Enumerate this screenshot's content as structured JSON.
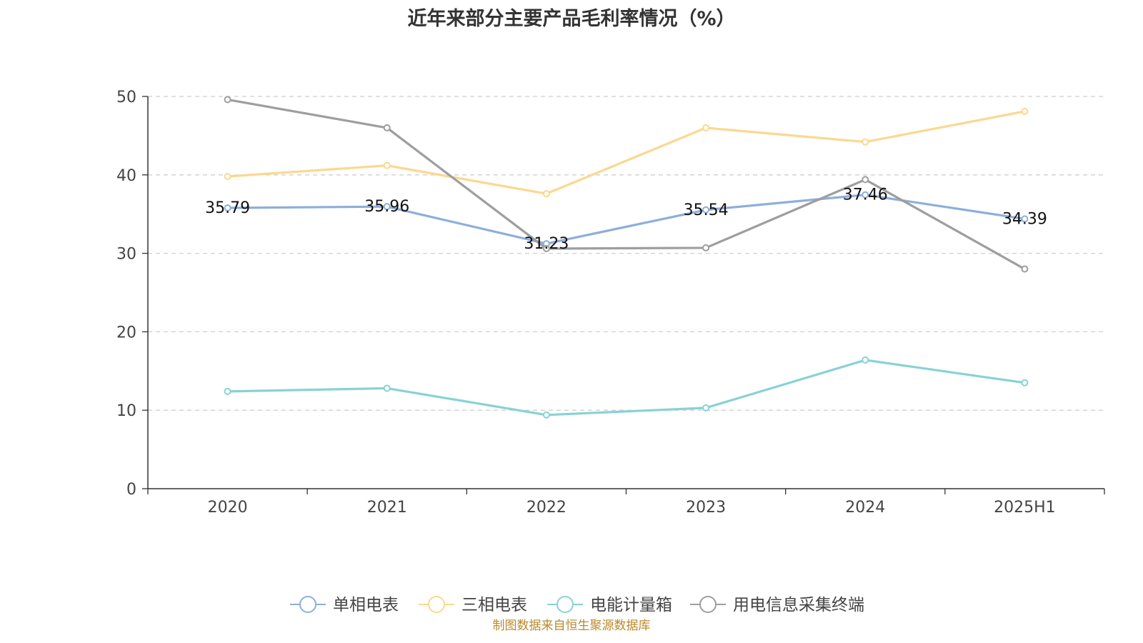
{
  "chart_data": {
    "type": "line",
    "title": "近年来部分主要产品毛利率情况（%）",
    "categories": [
      "2020",
      "2021",
      "2022",
      "2023",
      "2024",
      "2025H1"
    ],
    "ylim": [
      0,
      50
    ],
    "yticks": [
      "0",
      "10",
      "20",
      "30",
      "40",
      "50"
    ],
    "grid": true,
    "legend_position": "bottom",
    "series": [
      {
        "name": "单相电表",
        "color": "#8eaedb",
        "values": [
          35.79,
          35.96,
          31.23,
          35.54,
          37.46,
          34.39
        ],
        "labels": [
          "35.79",
          "35.96",
          "31.23",
          "35.54",
          "37.46",
          "34.39"
        ]
      },
      {
        "name": "三相电表",
        "color": "#fbd88f",
        "values": [
          39.8,
          41.2,
          37.6,
          46.0,
          44.2,
          48.1
        ]
      },
      {
        "name": "电能计量箱",
        "color": "#88d2d5",
        "values": [
          12.4,
          12.8,
          9.4,
          10.3,
          16.4,
          13.5
        ]
      },
      {
        "name": "用电信息采集终端",
        "color": "#9e9e9e",
        "values": [
          49.6,
          46.0,
          30.6,
          30.7,
          39.4,
          28.0
        ]
      }
    ]
  },
  "source": "制图数据来自恒生聚源数据库"
}
